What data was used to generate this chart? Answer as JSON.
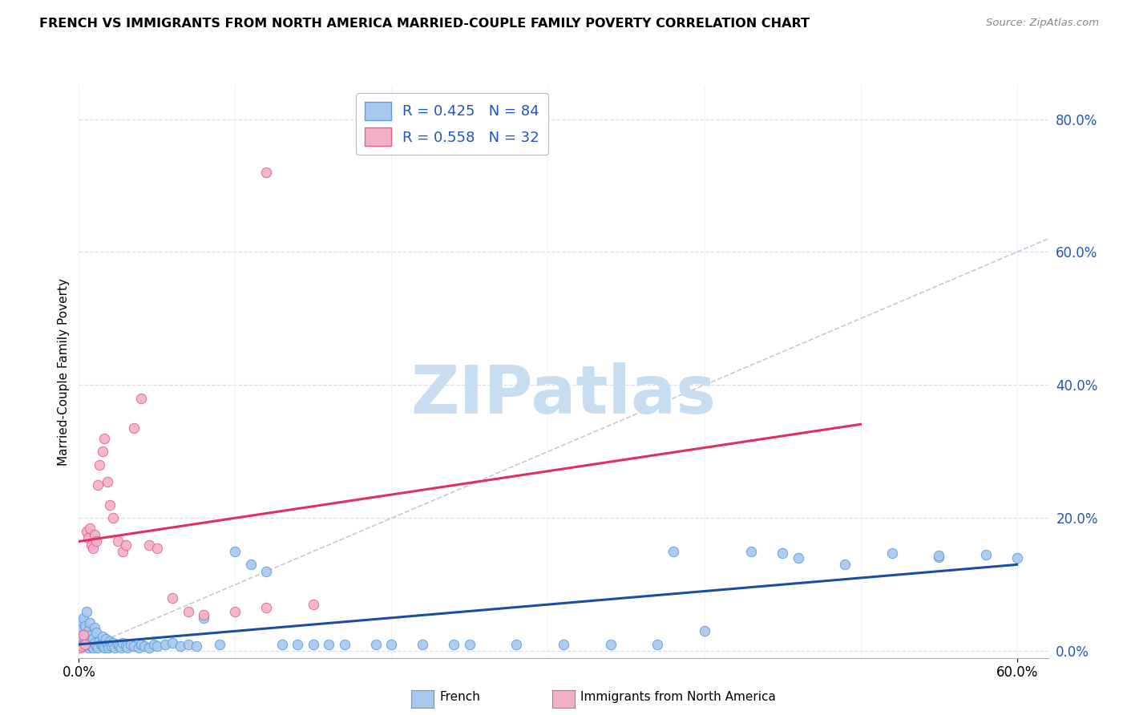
{
  "title": "FRENCH VS IMMIGRANTS FROM NORTH AMERICA MARRIED-COUPLE FAMILY POVERTY CORRELATION CHART",
  "source": "Source: ZipAtlas.com",
  "ylabel": "Married-Couple Family Poverty",
  "xlim": [
    0.0,
    0.62
  ],
  "ylim": [
    -0.01,
    0.85
  ],
  "french_color": "#a8c8f0",
  "french_edge": "#5a9fd4",
  "immna_color": "#f4b0c8",
  "immna_edge": "#e06090",
  "trendline_french_color": "#1a4fa0",
  "trendline_immna_color": "#e03060",
  "diagonal_color": "#c8c8d8",
  "R_french": 0.425,
  "N_french": 84,
  "R_immna": 0.558,
  "N_immna": 32,
  "legend_text_color": "#2255bb",
  "legend_N_color": "#cc2222",
  "watermark_color": "#c8ddf0",
  "legend_color_blue": "#a8c8f0",
  "legend_color_pink": "#f4b0c8",
  "french_label": "French",
  "immna_label": "Immigrants from North America",
  "french_x": [
    0.001,
    0.001,
    0.002,
    0.002,
    0.003,
    0.003,
    0.004,
    0.004,
    0.005,
    0.005,
    0.006,
    0.006,
    0.007,
    0.007,
    0.008,
    0.008,
    0.009,
    0.009,
    0.01,
    0.01,
    0.011,
    0.011,
    0.012,
    0.013,
    0.014,
    0.015,
    0.015,
    0.016,
    0.017,
    0.018,
    0.019,
    0.02,
    0.021,
    0.022,
    0.023,
    0.025,
    0.026,
    0.027,
    0.028,
    0.03,
    0.031,
    0.033,
    0.035,
    0.038,
    0.04,
    0.042,
    0.045,
    0.048,
    0.05,
    0.055,
    0.06,
    0.065,
    0.07,
    0.075,
    0.08,
    0.09,
    0.1,
    0.11,
    0.12,
    0.13,
    0.15,
    0.17,
    0.19,
    0.22,
    0.25,
    0.28,
    0.31,
    0.34,
    0.37,
    0.4,
    0.43,
    0.46,
    0.49,
    0.52,
    0.55,
    0.58,
    0.6,
    0.38,
    0.45,
    0.55,
    0.14,
    0.16,
    0.2,
    0.24
  ],
  "french_y": [
    0.02,
    0.035,
    0.01,
    0.045,
    0.025,
    0.05,
    0.008,
    0.038,
    0.015,
    0.06,
    0.005,
    0.03,
    0.012,
    0.042,
    0.008,
    0.025,
    0.018,
    0.005,
    0.035,
    0.012,
    0.008,
    0.028,
    0.005,
    0.015,
    0.01,
    0.008,
    0.022,
    0.005,
    0.018,
    0.01,
    0.005,
    0.015,
    0.008,
    0.012,
    0.005,
    0.01,
    0.008,
    0.005,
    0.012,
    0.008,
    0.005,
    0.01,
    0.008,
    0.005,
    0.01,
    0.008,
    0.005,
    0.01,
    0.008,
    0.01,
    0.012,
    0.008,
    0.01,
    0.008,
    0.05,
    0.01,
    0.15,
    0.13,
    0.12,
    0.01,
    0.01,
    0.01,
    0.01,
    0.01,
    0.01,
    0.01,
    0.01,
    0.01,
    0.01,
    0.03,
    0.15,
    0.14,
    0.13,
    0.148,
    0.142,
    0.145,
    0.14,
    0.15,
    0.148,
    0.144,
    0.01,
    0.01,
    0.01,
    0.01
  ],
  "immna_x": [
    0.001,
    0.002,
    0.003,
    0.004,
    0.005,
    0.006,
    0.007,
    0.008,
    0.009,
    0.01,
    0.011,
    0.012,
    0.013,
    0.015,
    0.016,
    0.018,
    0.02,
    0.022,
    0.025,
    0.028,
    0.03,
    0.035,
    0.04,
    0.045,
    0.05,
    0.06,
    0.07,
    0.08,
    0.1,
    0.12,
    0.15,
    0.12
  ],
  "immna_y": [
    0.005,
    0.008,
    0.025,
    0.01,
    0.18,
    0.17,
    0.185,
    0.16,
    0.155,
    0.175,
    0.165,
    0.25,
    0.28,
    0.3,
    0.32,
    0.255,
    0.22,
    0.2,
    0.165,
    0.15,
    0.16,
    0.335,
    0.38,
    0.16,
    0.155,
    0.08,
    0.06,
    0.055,
    0.06,
    0.065,
    0.07,
    0.72
  ]
}
